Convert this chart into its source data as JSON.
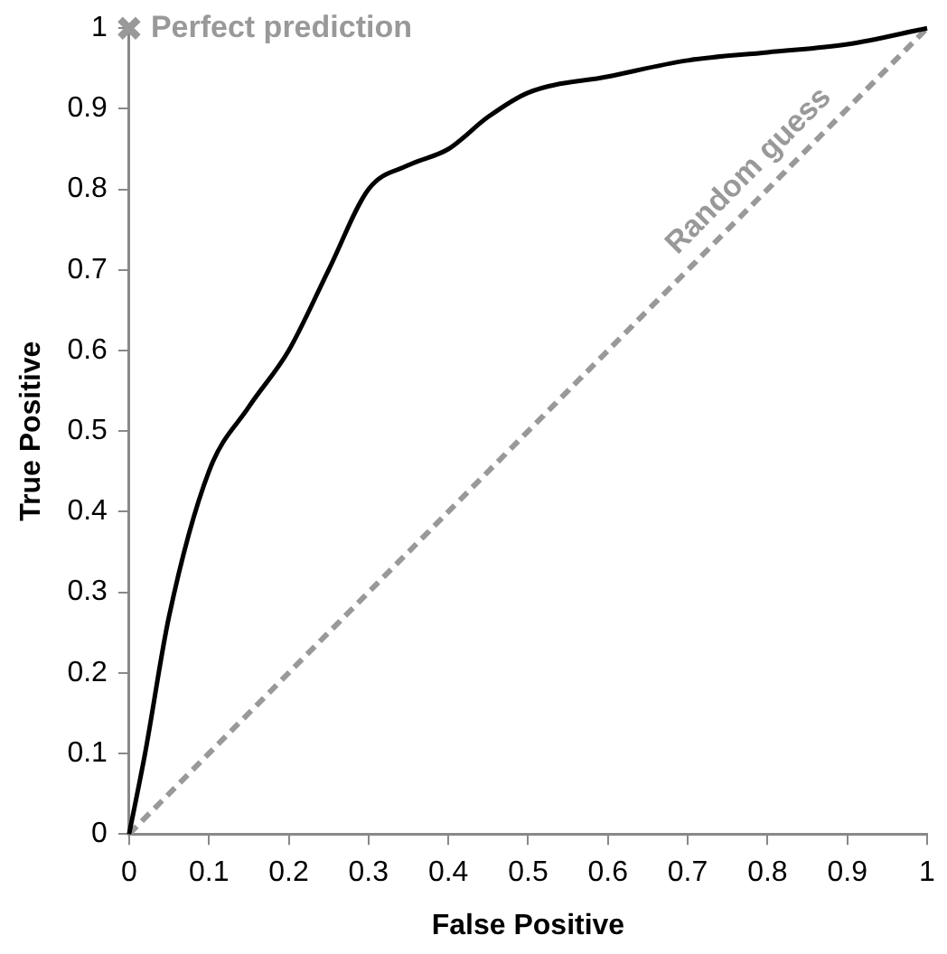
{
  "chart_data": {
    "type": "line",
    "xlabel": "False Positive",
    "ylabel": "True Positive",
    "xlim": [
      0,
      1
    ],
    "ylim": [
      0,
      1
    ],
    "xticks": [
      0,
      0.1,
      0.2,
      0.3,
      0.4,
      0.5,
      0.6,
      0.7,
      0.8,
      0.9,
      1
    ],
    "yticks": [
      0,
      0.1,
      0.2,
      0.3,
      0.4,
      0.5,
      0.6,
      0.7,
      0.8,
      0.9,
      1
    ],
    "grid": false,
    "legend": false,
    "series": [
      {
        "color": "#000000",
        "line_style": "solid",
        "marker": "none",
        "x": [
          0,
          0.02,
          0.05,
          0.1,
          0.15,
          0.2,
          0.25,
          0.3,
          0.35,
          0.4,
          0.45,
          0.5,
          0.6,
          0.7,
          0.8,
          0.9,
          1
        ],
        "values": [
          0,
          0.1,
          0.27,
          0.45,
          0.53,
          0.6,
          0.7,
          0.8,
          0.83,
          0.85,
          0.89,
          0.92,
          0.94,
          0.96,
          0.97,
          0.98,
          1
        ]
      },
      {
        "type": "line",
        "color": "#999999",
        "line_style": "dashed",
        "marker": "none",
        "x": [
          0,
          1
        ],
        "values": [
          0,
          1
        ]
      },
      {
        "type": "scatter",
        "color": "#999999",
        "marker": "cross",
        "x": [
          0
        ],
        "values": [
          1
        ]
      }
    ],
    "annotations": [
      {
        "text": "Perfect prediction",
        "x": 0,
        "y": 1
      },
      {
        "text": "Random guess",
        "x": 0.8,
        "y": 0.8
      }
    ]
  }
}
